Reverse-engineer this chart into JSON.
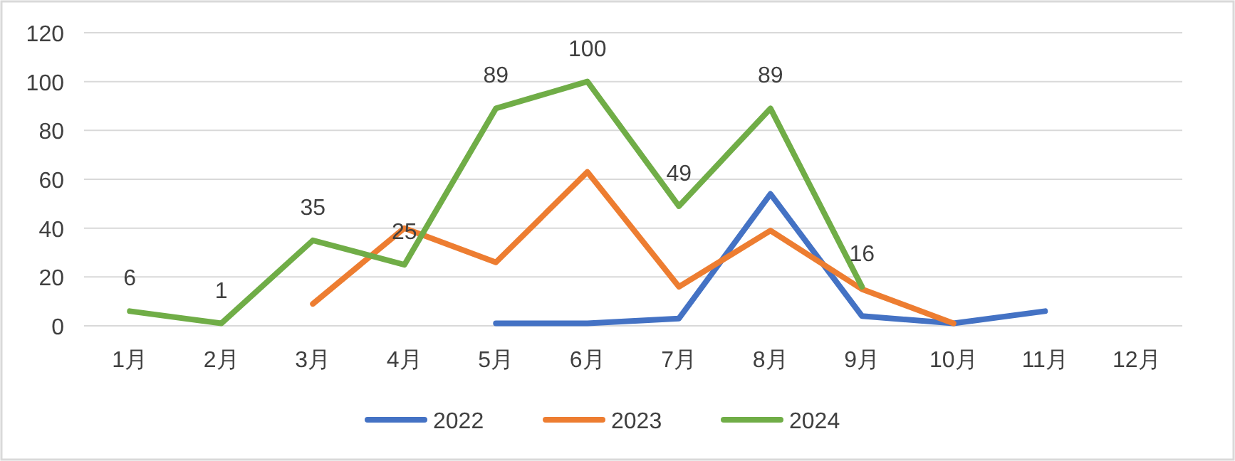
{
  "chart_data": {
    "type": "line",
    "categories": [
      "1月",
      "2月",
      "3月",
      "4月",
      "5月",
      "6月",
      "7月",
      "8月",
      "9月",
      "10月",
      "11月",
      "12月"
    ],
    "series": [
      {
        "name": "2022",
        "color": "#4472c4",
        "values": [
          null,
          null,
          null,
          null,
          1,
          1,
          3,
          54,
          4,
          1,
          6,
          null
        ]
      },
      {
        "name": "2023",
        "color": "#ed7d31",
        "values": [
          null,
          null,
          9,
          40,
          26,
          63,
          16,
          39,
          15,
          1,
          null,
          null
        ]
      },
      {
        "name": "2024",
        "color": "#70ad47",
        "values": [
          6,
          1,
          35,
          25,
          89,
          100,
          49,
          89,
          16,
          null,
          null,
          null
        ],
        "value_labels": [
          "6",
          "1",
          "35",
          "25",
          "89",
          "100",
          "49",
          "89",
          "16",
          null,
          null,
          null
        ]
      }
    ],
    "ylim": [
      0,
      120
    ],
    "yticks": [
      0,
      20,
      40,
      60,
      80,
      100,
      120
    ],
    "grid": "y",
    "legend": "bottom",
    "marker": "none",
    "line_style": "solid"
  }
}
